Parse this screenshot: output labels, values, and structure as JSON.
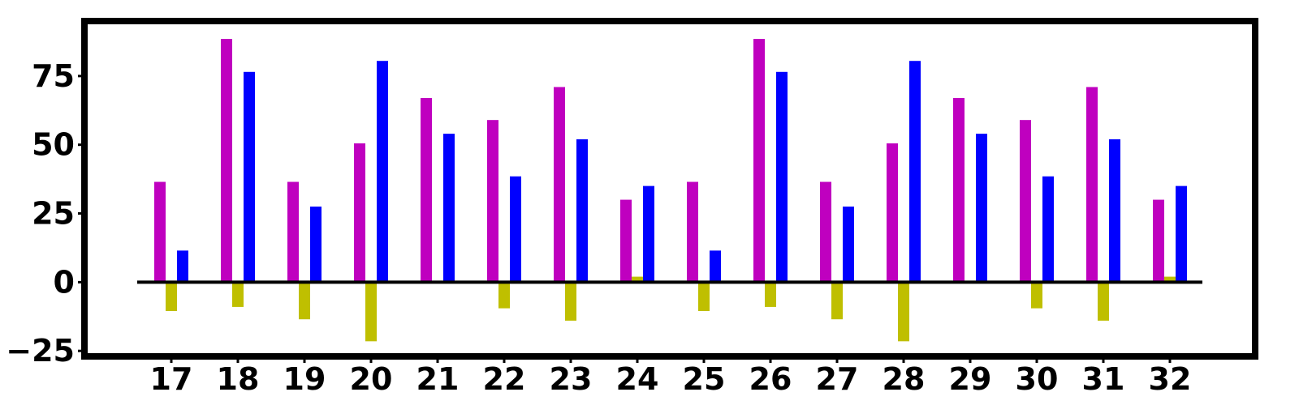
{
  "chart_data": {
    "type": "bar",
    "title": "",
    "xlabel": "",
    "ylabel": "",
    "categories": [
      "17",
      "18",
      "19",
      "20",
      "21",
      "22",
      "23",
      "24",
      "25",
      "26",
      "27",
      "28",
      "29",
      "30",
      "31",
      "32"
    ],
    "series": [
      {
        "color": "#bf00bf",
        "values": [
          36.5,
          88.5,
          36.5,
          50.5,
          67,
          59,
          71,
          30,
          36.5,
          88.5,
          36.5,
          50.5,
          67,
          59,
          71,
          30
        ]
      },
      {
        "color": "#bfbf00",
        "values": [
          -10.5,
          -9,
          -13.5,
          -21.5,
          0,
          -9.5,
          -14,
          2,
          -10.5,
          -9,
          -13.5,
          -21.5,
          0,
          -9.5,
          -14,
          2
        ]
      },
      {
        "color": "#0000ff",
        "values": [
          11.5,
          76.5,
          27.5,
          80.5,
          54,
          38.5,
          52,
          35,
          11.5,
          76.5,
          27.5,
          80.5,
          54,
          38.5,
          52,
          35
        ]
      }
    ],
    "yticks": [
      -25,
      0,
      25,
      50,
      75
    ],
    "ylim": [
      -27,
      95
    ],
    "grid": false,
    "legend": "none",
    "zero_line": true
  }
}
